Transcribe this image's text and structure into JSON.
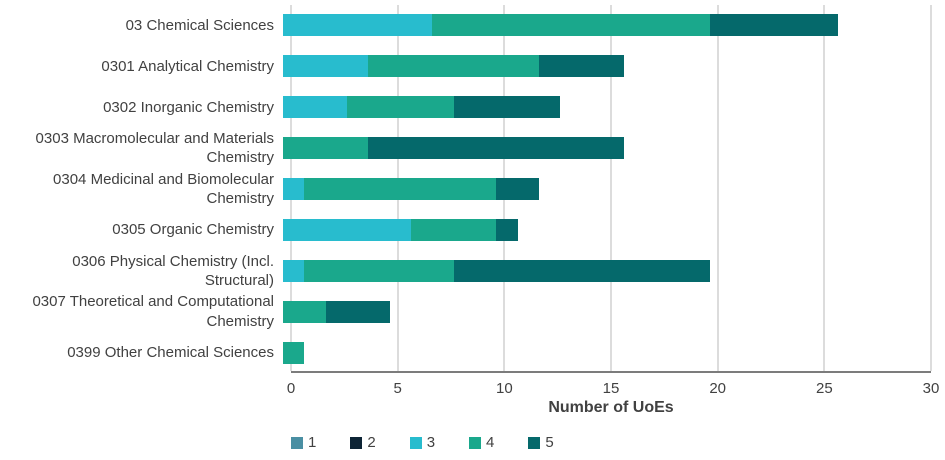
{
  "chart_data": {
    "type": "bar",
    "orientation": "horizontal",
    "stacked": true,
    "title": "",
    "xlabel": "Number of UoEs",
    "ylabel": "",
    "xlim": [
      0,
      30
    ],
    "xticks": [
      0,
      5,
      10,
      15,
      20,
      25,
      30
    ],
    "grid": "vertical-only",
    "legend_position": "bottom-left",
    "categories": [
      "03 Chemical Sciences",
      "0301 Analytical Chemistry",
      "0302 Inorganic Chemistry",
      "0303 Macromolecular and Materials Chemistry",
      "0304 Medicinal and Biomolecular Chemistry",
      "0305 Organic Chemistry",
      "0306 Physical Chemistry (Incl. Structural)",
      "0307 Theoretical and Computational Chemistry",
      "0399 Other Chemical Sciences"
    ],
    "series": [
      {
        "name": "1",
        "color": "#4A8FA3",
        "values": [
          0,
          0,
          0,
          0,
          0,
          0,
          0,
          0,
          0
        ]
      },
      {
        "name": "2",
        "color": "#0D2435",
        "values": [
          0,
          0,
          0,
          0,
          0,
          0,
          0,
          0,
          0
        ]
      },
      {
        "name": "3",
        "color": "#28BCCE",
        "values": [
          7,
          4,
          3,
          0,
          1,
          6,
          1,
          0,
          0
        ]
      },
      {
        "name": "4",
        "color": "#1AA88C",
        "values": [
          13,
          8,
          5,
          4,
          9,
          4,
          7,
          2,
          1
        ]
      },
      {
        "name": "5",
        "color": "#05696B",
        "values": [
          6,
          4,
          5,
          12,
          2,
          1,
          12,
          3,
          0
        ]
      }
    ],
    "totals": [
      26,
      16,
      13,
      16,
      12,
      11,
      20,
      5,
      1
    ]
  },
  "colors": {
    "text": "#414141",
    "gridline": "#B8B8B8",
    "axis_line": "#7C7C7C",
    "background": "#FFFFFF"
  }
}
